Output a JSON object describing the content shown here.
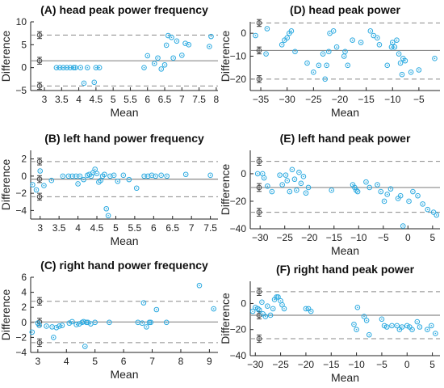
{
  "figure": {
    "layout": "3x2 grid of Bland-Altman plots"
  },
  "colors": {
    "marker": "#2aa9e0",
    "mean_line": "#8a8a8a",
    "loa_line": "#8a8a8a",
    "errorbar": "#444444",
    "axis": "#222222"
  },
  "chart_data": [
    {
      "id": "A",
      "type": "scatter",
      "title": "(A) head peak power frequency",
      "xlabel": "Mean",
      "ylabel": "Difference",
      "xlim": [
        2.6,
        8.05
      ],
      "ylim": [
        -5,
        10
      ],
      "xticks": [
        3,
        3.5,
        4,
        4.5,
        5,
        5.5,
        6,
        6.5,
        7,
        7.5,
        8
      ],
      "yticks": [
        -5,
        0,
        5,
        10
      ],
      "bias": 1.5,
      "loa_upper": 7.1,
      "loa_lower": -4.0,
      "points": [
        [
          3.35,
          0
        ],
        [
          3.45,
          0
        ],
        [
          3.55,
          0
        ],
        [
          3.65,
          0
        ],
        [
          3.75,
          0
        ],
        [
          3.85,
          0
        ],
        [
          3.9,
          0
        ],
        [
          4.05,
          0
        ],
        [
          4.25,
          0
        ],
        [
          4.15,
          -3.4
        ],
        [
          4.45,
          -3.2
        ],
        [
          4.5,
          0
        ],
        [
          4.6,
          0
        ],
        [
          5.9,
          0
        ],
        [
          6.0,
          2.6
        ],
        [
          6.2,
          0.9
        ],
        [
          6.3,
          2.1
        ],
        [
          6.4,
          -0.3
        ],
        [
          6.5,
          0.6
        ],
        [
          6.55,
          4.9
        ],
        [
          6.6,
          7.0
        ],
        [
          6.7,
          6.6
        ],
        [
          6.75,
          2.1
        ],
        [
          6.85,
          5.8
        ],
        [
          7.0,
          2.7
        ],
        [
          7.1,
          5.3
        ],
        [
          7.2,
          5.0
        ],
        [
          7.8,
          4.6
        ],
        [
          7.85,
          6.8
        ]
      ]
    },
    {
      "id": "D",
      "type": "scatter",
      "title": "(D) head peak power",
      "xlabel": "Mean",
      "ylabel": "Difference",
      "xlim": [
        -37,
        -1
      ],
      "ylim": [
        -25,
        5
      ],
      "xticks": [
        -35,
        -30,
        -25,
        -20,
        -15,
        -10,
        -5
      ],
      "yticks": [
        -20,
        -10,
        0
      ],
      "bias": -7.5,
      "loa_upper": 4.5,
      "loa_lower": -20.0,
      "points": [
        [
          -36,
          -1
        ],
        [
          -34,
          -9
        ],
        [
          -33.8,
          2
        ],
        [
          -31,
          -5
        ],
        [
          -30.5,
          -3
        ],
        [
          -30,
          -2
        ],
        [
          -29.6,
          0
        ],
        [
          -29.2,
          1
        ],
        [
          -28.5,
          -8
        ],
        [
          -26.2,
          -13
        ],
        [
          -25,
          -17
        ],
        [
          -24,
          -14
        ],
        [
          -23.2,
          -9
        ],
        [
          -22.8,
          -20
        ],
        [
          -22.5,
          -14
        ],
        [
          -22.1,
          -8
        ],
        [
          -21.9,
          0
        ],
        [
          -21.2,
          1
        ],
        [
          -20.6,
          -6
        ],
        [
          -19.2,
          -10
        ],
        [
          -19,
          -8
        ],
        [
          -18.5,
          -14
        ],
        [
          -17.6,
          -3
        ],
        [
          -16,
          -4
        ],
        [
          -14.2,
          1
        ],
        [
          -13.6,
          -1
        ],
        [
          -12.9,
          -2
        ],
        [
          -12.5,
          -5
        ],
        [
          -11,
          -14
        ],
        [
          -10.2,
          -6
        ],
        [
          -10,
          -4
        ],
        [
          -9.6,
          -6
        ],
        [
          -9.2,
          -3
        ],
        [
          -8.8,
          -9
        ],
        [
          -8.5,
          -13
        ],
        [
          -8.2,
          -18
        ],
        [
          -8,
          -11
        ],
        [
          -7.6,
          -12
        ],
        [
          -6.5,
          -17
        ],
        [
          -5,
          -16
        ],
        [
          -2,
          -11
        ]
      ]
    },
    {
      "id": "B",
      "type": "scatter",
      "title": "(B) left hand power frequency",
      "xlabel": "Mean",
      "ylabel": "Difference",
      "xlim": [
        2.75,
        7.7
      ],
      "ylim": [
        -5,
        3
      ],
      "xticks": [
        3,
        3.5,
        4,
        4.5,
        5,
        5.5,
        6,
        6.5,
        7,
        7.5
      ],
      "yticks": [
        -4,
        -2,
        0,
        2
      ],
      "bias": -0.35,
      "loa_upper": 1.7,
      "loa_lower": -2.4,
      "points": [
        [
          2.8,
          -1.0
        ],
        [
          2.9,
          -1.6
        ],
        [
          3.0,
          0.6
        ],
        [
          3.1,
          -1.1
        ],
        [
          3.3,
          -0.5
        ],
        [
          3.6,
          0
        ],
        [
          3.75,
          0
        ],
        [
          3.85,
          0
        ],
        [
          3.95,
          0
        ],
        [
          4.0,
          -0.9
        ],
        [
          4.05,
          0
        ],
        [
          4.15,
          -0.4
        ],
        [
          4.25,
          0.1
        ],
        [
          4.3,
          0.2
        ],
        [
          4.35,
          0
        ],
        [
          4.4,
          0.4
        ],
        [
          4.45,
          0.8
        ],
        [
          4.5,
          0.3
        ],
        [
          4.55,
          -0.7
        ],
        [
          4.6,
          -0.5
        ],
        [
          4.65,
          0
        ],
        [
          4.7,
          0.2
        ],
        [
          4.75,
          -3.8
        ],
        [
          4.8,
          -4.6
        ],
        [
          4.85,
          0
        ],
        [
          4.95,
          0.1
        ],
        [
          5.05,
          -0.6
        ],
        [
          5.2,
          0.1
        ],
        [
          5.35,
          -0.4
        ],
        [
          5.55,
          -1.4
        ],
        [
          5.75,
          0
        ],
        [
          5.85,
          0
        ],
        [
          5.95,
          0.1
        ],
        [
          6.05,
          0
        ],
        [
          6.2,
          0.1
        ],
        [
          6.35,
          0
        ],
        [
          6.85,
          0.2
        ],
        [
          7.5,
          0.1
        ]
      ]
    },
    {
      "id": "E",
      "type": "scatter",
      "title": "(E) left hand peak power",
      "xlabel": "Mean",
      "ylabel": "Difference",
      "xlim": [
        -32,
        6.5
      ],
      "ylim": [
        -40,
        17
      ],
      "xticks": [
        -30,
        -25,
        -20,
        -15,
        -10,
        -5,
        0,
        5
      ],
      "yticks": [
        -40,
        -20,
        0
      ],
      "bias": -10.0,
      "loa_upper": 9.0,
      "loa_lower": -28.0,
      "points": [
        [
          -30.5,
          0
        ],
        [
          -29.5,
          0
        ],
        [
          -29.2,
          -3
        ],
        [
          -28.5,
          -9
        ],
        [
          -27.6,
          -13
        ],
        [
          -26,
          -1
        ],
        [
          -25.5,
          -8
        ],
        [
          -24.8,
          -1
        ],
        [
          -24.5,
          -5
        ],
        [
          -24,
          -13
        ],
        [
          -23.5,
          3
        ],
        [
          -23,
          -4
        ],
        [
          -22.6,
          -12
        ],
        [
          -22.1,
          1
        ],
        [
          -21.7,
          -7
        ],
        [
          -21.2,
          -2
        ],
        [
          -20.7,
          -14
        ],
        [
          -20.2,
          -10
        ],
        [
          -15.5,
          -12
        ],
        [
          -11.2,
          -8
        ],
        [
          -10.8,
          -10
        ],
        [
          -10.5,
          -12
        ],
        [
          -10.2,
          -13
        ],
        [
          -8.5,
          -6
        ],
        [
          -7.8,
          -10
        ],
        [
          -6.2,
          -8
        ],
        [
          -5.5,
          -13
        ],
        [
          -4.8,
          -20
        ],
        [
          -4.2,
          -15
        ],
        [
          -3.5,
          -11
        ],
        [
          -2,
          -18
        ],
        [
          -1.5,
          -16
        ],
        [
          -1,
          -38
        ],
        [
          0.2,
          -20
        ],
        [
          1,
          -13
        ],
        [
          2,
          -16
        ],
        [
          3,
          -22
        ],
        [
          4,
          -26
        ],
        [
          5.2,
          -28
        ],
        [
          5.8,
          -30
        ]
      ]
    },
    {
      "id": "C",
      "type": "scatter",
      "title": "(C) right hand power frequency",
      "xlabel": "Mean",
      "ylabel": "Difference",
      "xlim": [
        2.75,
        9.3
      ],
      "ylim": [
        -4,
        6
      ],
      "xticks": [
        3,
        4,
        5,
        6,
        7,
        8,
        9
      ],
      "yticks": [
        -4,
        -2,
        0,
        2,
        4,
        6
      ],
      "bias": 0.05,
      "loa_upper": 2.8,
      "loa_lower": -2.7,
      "points": [
        [
          2.8,
          -1.3
        ],
        [
          3.0,
          -0.1
        ],
        [
          3.05,
          -0.4
        ],
        [
          3.3,
          -0.5
        ],
        [
          3.5,
          -0.6
        ],
        [
          3.55,
          -2.0
        ],
        [
          3.65,
          -0.7
        ],
        [
          3.75,
          -0.5
        ],
        [
          3.85,
          -0.4
        ],
        [
          4.1,
          -0.1
        ],
        [
          4.2,
          0.1
        ],
        [
          4.35,
          -0.3
        ],
        [
          4.45,
          -0.2
        ],
        [
          4.55,
          0
        ],
        [
          4.6,
          0.1
        ],
        [
          4.65,
          -3.2
        ],
        [
          4.7,
          0
        ],
        [
          4.75,
          0
        ],
        [
          4.85,
          -0.2
        ],
        [
          5.0,
          0
        ],
        [
          5.5,
          0
        ],
        [
          6.5,
          0
        ],
        [
          6.65,
          -0.1
        ],
        [
          6.7,
          2.6
        ],
        [
          6.8,
          -0.6
        ],
        [
          6.9,
          0
        ],
        [
          6.95,
          0
        ],
        [
          7.15,
          1.7
        ],
        [
          7.5,
          0
        ],
        [
          8.65,
          4.9
        ],
        [
          9.15,
          1.8
        ]
      ]
    },
    {
      "id": "F",
      "type": "scatter",
      "title": "(F) right hand peak power",
      "xlabel": "Mean",
      "ylabel": "Difference",
      "xlim": [
        -31,
        6.5
      ],
      "ylim": [
        -40,
        17
      ],
      "xticks": [
        -30,
        -25,
        -20,
        -15,
        -10,
        -5,
        0,
        5
      ],
      "yticks": [
        -40,
        -20,
        0
      ],
      "bias": -9.0,
      "loa_upper": 9.0,
      "loa_lower": -27.0,
      "points": [
        [
          -30.5,
          -6
        ],
        [
          -30,
          -3
        ],
        [
          -29.5,
          -4
        ],
        [
          -29.2,
          -5
        ],
        [
          -28.7,
          1
        ],
        [
          -28.5,
          -8
        ],
        [
          -28,
          -10
        ],
        [
          -27.6,
          -2
        ],
        [
          -27,
          -9
        ],
        [
          -26.5,
          -4
        ],
        [
          -26.2,
          3
        ],
        [
          -25.8,
          5
        ],
        [
          -25.5,
          5
        ],
        [
          -25,
          2
        ],
        [
          -24.7,
          -1
        ],
        [
          -24.3,
          -4
        ],
        [
          -20,
          -4
        ],
        [
          -19.5,
          -4
        ],
        [
          -19,
          -6
        ],
        [
          -10.5,
          -16
        ],
        [
          -10,
          -20
        ],
        [
          -9.8,
          -3
        ],
        [
          -8.5,
          -10
        ],
        [
          -8,
          -13
        ],
        [
          -7.5,
          -24
        ],
        [
          -5,
          -12
        ],
        [
          -4.5,
          -17
        ],
        [
          -4,
          -18
        ],
        [
          -3,
          -17
        ],
        [
          -2,
          -17
        ],
        [
          -1.5,
          -20
        ],
        [
          -1,
          -18
        ],
        [
          0,
          -17
        ],
        [
          0.5,
          -18
        ],
        [
          1,
          -20
        ],
        [
          2,
          -14
        ],
        [
          2.5,
          -18
        ],
        [
          4,
          -20
        ],
        [
          4.8,
          -17
        ],
        [
          5.6,
          -23
        ]
      ]
    }
  ]
}
